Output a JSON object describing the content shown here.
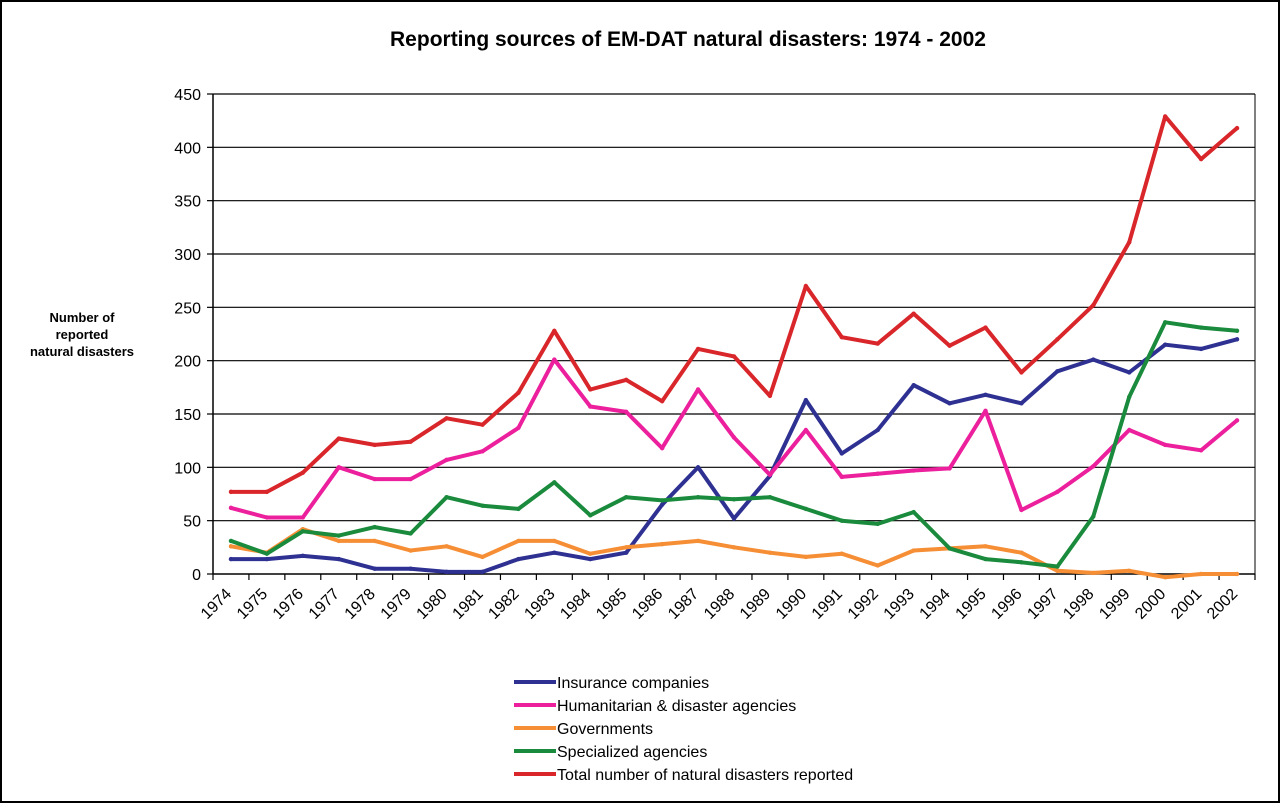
{
  "chart_data": {
    "type": "line",
    "title": "Reporting sources of EM-DAT natural disasters: 1974 - 2002",
    "ylabel": [
      "Number of",
      "reported",
      "natural disasters"
    ],
    "xlabel": "",
    "ylim": [
      0,
      450
    ],
    "yticks": [
      "0",
      "50",
      "100",
      "150",
      "200",
      "250",
      "300",
      "350",
      "400",
      "450"
    ],
    "categories": [
      "1974",
      "1975",
      "1976",
      "1977",
      "1978",
      "1979",
      "1980",
      "1981",
      "1982",
      "1983",
      "1984",
      "1985",
      "1986",
      "1987",
      "1988",
      "1989",
      "1990",
      "1991",
      "1992",
      "1993",
      "1994",
      "1995",
      "1996",
      "1997",
      "1998",
      "1999",
      "2000",
      "2001",
      "2002"
    ],
    "grid": "horizontal",
    "legend_position": "bottom-center",
    "series": [
      {
        "name": "Insurance companies",
        "color": "#2e3192",
        "values": [
          14,
          14,
          17,
          14,
          5,
          5,
          2,
          2,
          14,
          20,
          14,
          20,
          65,
          100,
          52,
          92,
          163,
          113,
          135,
          177,
          160,
          168,
          160,
          190,
          201,
          189,
          215,
          211,
          220
        ]
      },
      {
        "name": "Humanitarian  & disaster agencies",
        "color": "#ec1f9c",
        "values": [
          62,
          53,
          53,
          100,
          89,
          89,
          107,
          115,
          137,
          201,
          157,
          152,
          118,
          173,
          128,
          93,
          135,
          91,
          94,
          97,
          99,
          153,
          60,
          77,
          101,
          135,
          121,
          116,
          144
        ]
      },
      {
        "name": "Governments",
        "color": "#f68e35",
        "values": [
          26,
          20,
          42,
          31,
          31,
          22,
          26,
          16,
          31,
          31,
          19,
          25,
          28,
          31,
          25,
          20,
          16,
          19,
          8,
          22,
          24,
          26,
          20,
          3,
          1,
          3,
          -3,
          0,
          0
        ]
      },
      {
        "name": "Specialized agencies",
        "color": "#1a8a3c",
        "values": [
          31,
          19,
          40,
          36,
          44,
          38,
          72,
          64,
          61,
          86,
          55,
          72,
          69,
          72,
          70,
          72,
          61,
          50,
          47,
          58,
          24,
          14,
          11,
          7,
          54,
          166,
          236,
          231,
          228
        ]
      },
      {
        "name": "Total number of natural disasters reported",
        "color": "#d9262a",
        "values": [
          77,
          77,
          95,
          127,
          121,
          124,
          146,
          140,
          170,
          228,
          173,
          182,
          162,
          211,
          204,
          167,
          270,
          222,
          216,
          244,
          214,
          231,
          189,
          220,
          252,
          311,
          429,
          389,
          418
        ]
      }
    ]
  }
}
